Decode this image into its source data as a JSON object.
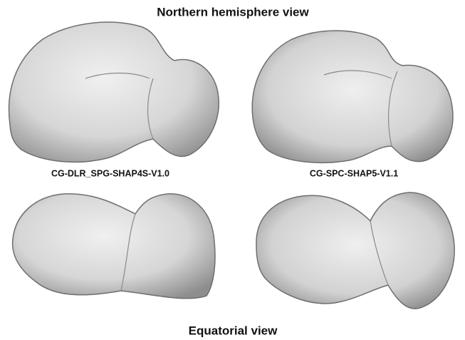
{
  "figure": {
    "title": "Northern hemisphere view",
    "labels": [
      "CG-DLR_SPG-SHAP4S-V1.0",
      "CG-SPC-SHAP5-V1.1"
    ],
    "bottom_title": "Equatorial view"
  }
}
